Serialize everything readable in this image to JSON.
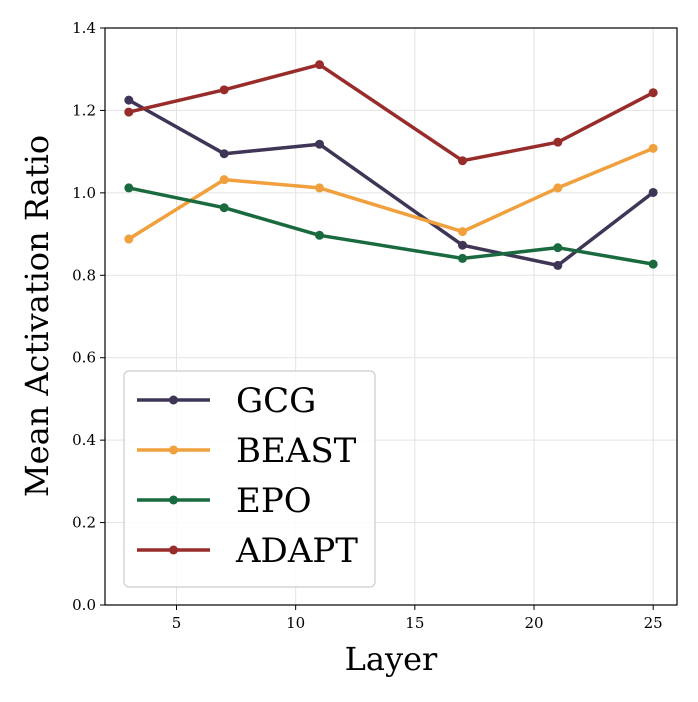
{
  "chart_data": {
    "type": "line",
    "title": "",
    "xlabel": "Layer",
    "ylabel": "Mean Activation Ratio",
    "x": [
      3,
      7,
      11,
      17,
      21,
      25
    ],
    "xlim": [
      2.0,
      26.0
    ],
    "ylim": [
      0.0,
      1.4
    ],
    "xticks": [
      "5",
      "10",
      "15",
      "20",
      "25"
    ],
    "yticks": [
      "0.0",
      "0.2",
      "0.4",
      "0.6",
      "0.8",
      "1.0",
      "1.2",
      "1.4"
    ],
    "grid": true,
    "legend_position": "lower-left",
    "series": [
      {
        "name": "GCG",
        "color": "#3f3557",
        "values": [
          1.225,
          1.095,
          1.118,
          0.873,
          0.824,
          1.001
        ]
      },
      {
        "name": "BEAST",
        "color": "#f0a03c",
        "values": [
          0.888,
          1.032,
          1.012,
          0.906,
          1.012,
          1.108
        ]
      },
      {
        "name": "EPO",
        "color": "#1a6a3f",
        "values": [
          1.012,
          0.964,
          0.897,
          0.841,
          0.867,
          0.827
        ]
      },
      {
        "name": "ADAPT",
        "color": "#982c2a",
        "values": [
          1.196,
          1.25,
          1.311,
          1.078,
          1.123,
          1.243
        ]
      }
    ]
  }
}
